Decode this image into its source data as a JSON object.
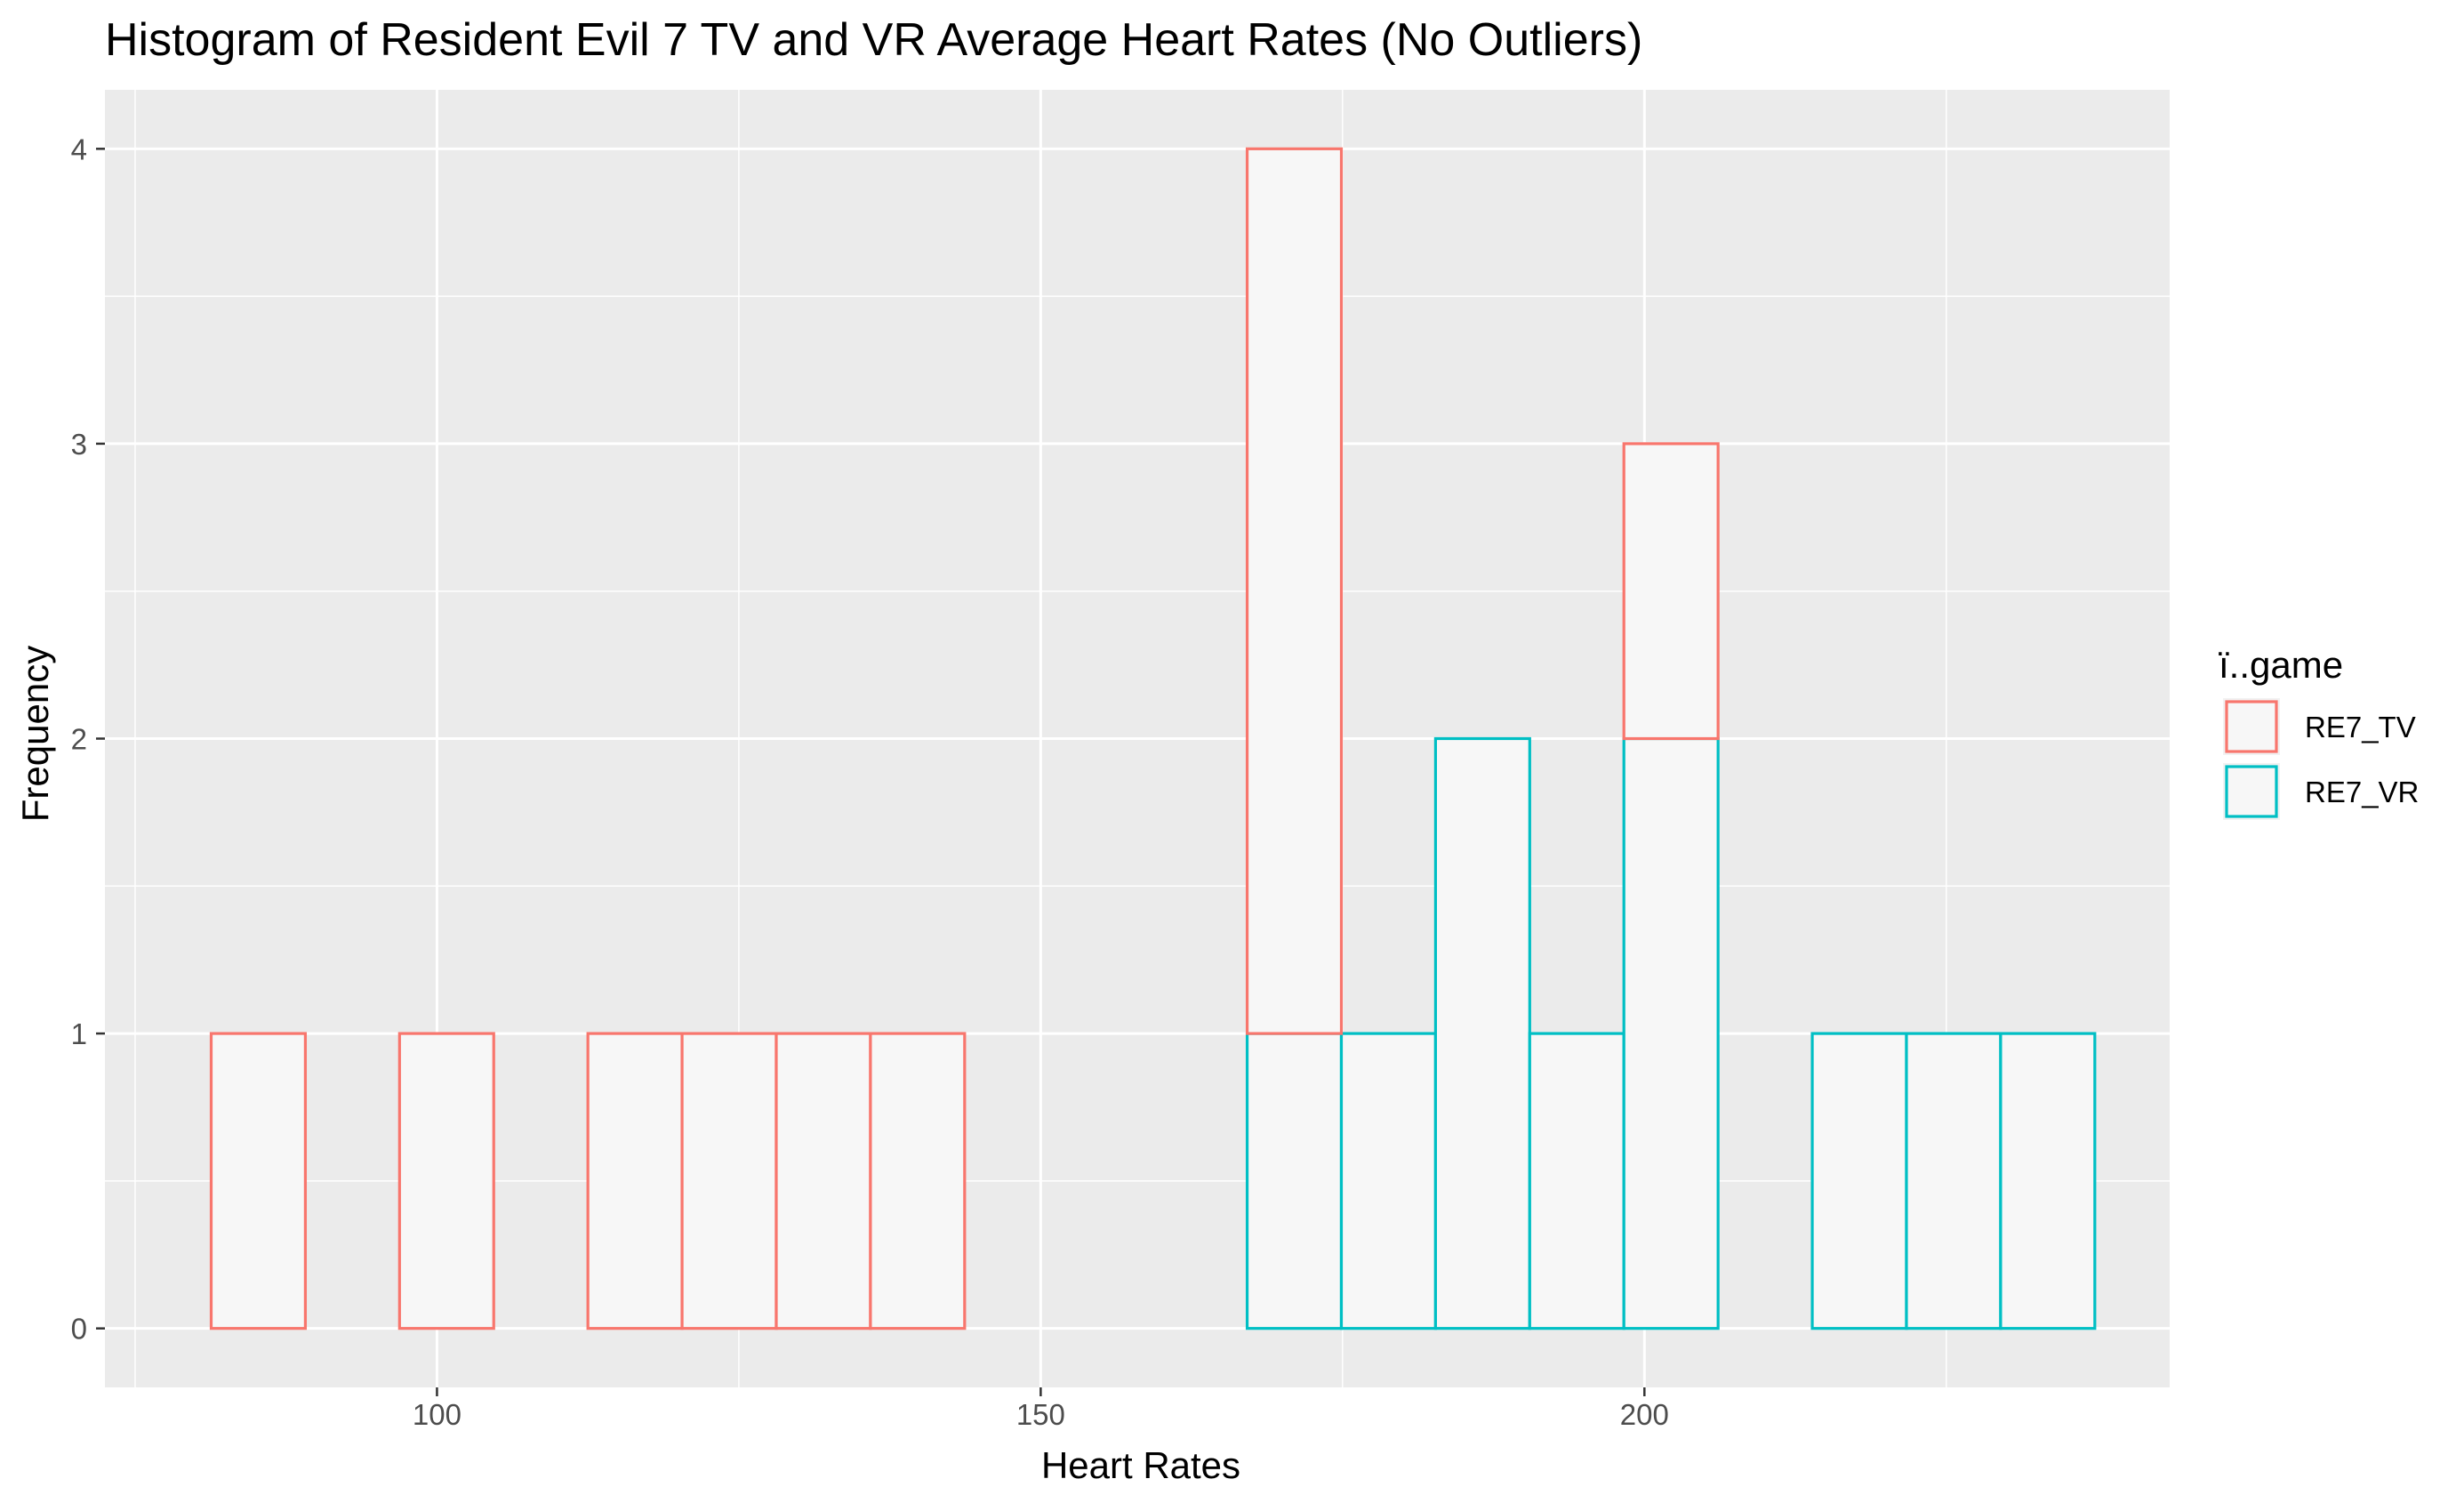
{
  "chart_data": {
    "type": "bar",
    "title": "Histogram of Resident Evil 7 TV and VR Average Heart Rates (No Outliers)",
    "xlabel": "Heart Rates",
    "ylabel": "Frequency",
    "xlim": [
      72.5,
      243.5
    ],
    "ylim": [
      -0.2,
      4.2
    ],
    "x_ticks": [
      100,
      150,
      200
    ],
    "x_tick_labels": [
      "100",
      "150",
      "200"
    ],
    "y_ticks": [
      0,
      1,
      2,
      3,
      4
    ],
    "y_tick_labels": [
      "0",
      "1",
      "2",
      "3",
      "4"
    ],
    "grid": true,
    "legend_position": "right",
    "legend_title": "ï..game",
    "bins": [
      [
        81.3,
        89.1
      ],
      [
        89.1,
        96.9
      ],
      [
        96.9,
        104.7
      ],
      [
        104.7,
        112.5
      ],
      [
        112.5,
        120.3
      ],
      [
        120.3,
        128.1
      ],
      [
        128.1,
        135.9
      ],
      [
        135.9,
        143.7
      ],
      [
        143.7,
        151.5
      ],
      [
        151.5,
        159.3
      ],
      [
        159.3,
        167.1
      ],
      [
        167.1,
        174.9
      ],
      [
        174.9,
        182.7
      ],
      [
        182.7,
        190.5
      ],
      [
        190.5,
        198.3
      ],
      [
        198.3,
        206.1
      ],
      [
        206.1,
        213.9
      ],
      [
        213.9,
        221.7
      ],
      [
        221.7,
        229.5
      ],
      [
        229.5,
        237.3
      ]
    ],
    "series": [
      {
        "name": "RE7_TV",
        "stroke": "#F8766D",
        "fill": "#F7F7F7",
        "values": [
          1,
          0,
          1,
          0,
          1,
          1,
          1,
          1,
          0,
          0,
          0,
          3,
          0,
          0,
          0,
          1,
          0,
          0,
          0,
          0
        ]
      },
      {
        "name": "RE7_VR",
        "stroke": "#00BFC4",
        "fill": "#F7F7F7",
        "values": [
          0,
          0,
          0,
          0,
          0,
          0,
          0,
          0,
          0,
          0,
          0,
          1,
          1,
          2,
          1,
          2,
          0,
          1,
          1,
          1
        ]
      }
    ],
    "panel_background": "#EBEBEB",
    "grid_color": "#FFFFFF"
  }
}
